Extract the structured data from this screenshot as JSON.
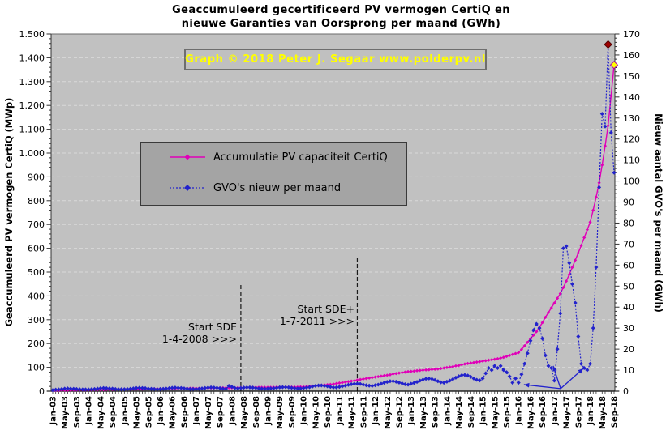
{
  "header": {
    "title_line1": "Geaccumuleerd  gecertificeerd  PV  vermogen  CertiQ  en",
    "title_line2": "nieuwe  Garanties  van  Oorsprong  per  maand  (GWh)"
  },
  "watermark": {
    "text": "Graph  ©  2018  Peter J. Segaar   www.polderpv.nl",
    "color": "#ffff00"
  },
  "chart_data": {
    "type": "line",
    "title": "Geaccumuleerd gecertificeerd PV vermogen CertiQ en nieuwe Garanties van Oorsprong per maand (GWh)",
    "x_label_every": 4,
    "x_tick_labels": [
      "Jan-03",
      "May-03",
      "Sep-03",
      "Jan-04",
      "May-04",
      "Sep-04",
      "Jan-05",
      "May-05",
      "Sep-05",
      "Jan-06",
      "May-06",
      "Sep-06",
      "Jan-07",
      "May-07",
      "Sep-07",
      "Jan-08",
      "May-08",
      "Sep-08",
      "Jan-09",
      "May-09",
      "Sep-09",
      "Jan-10",
      "May-10",
      "Sep-10",
      "Jan-11",
      "May-11",
      "Sep-11",
      "Jan-12",
      "May-12",
      "Sep-12",
      "Jan-13",
      "May-13",
      "Sep-13",
      "Jan-14",
      "May-14",
      "Sep-14",
      "Jan-15",
      "May-15",
      "Sep-15",
      "Jan-16",
      "May-16",
      "Sep-16",
      "Jan-17",
      "May-17",
      "Sep-17",
      "Jan-18",
      "May-18",
      "Sep-18"
    ],
    "y_left": {
      "label": "Geaccumuleerd PV vermogen CertiQ (MWp)",
      "min": 0,
      "max": 1500,
      "step": 100,
      "tick_labels": [
        "0",
        "100",
        "200",
        "300",
        "400",
        "500",
        "600",
        "700",
        "800",
        "900",
        "1.000",
        "1.100",
        "1.200",
        "1.300",
        "1.400",
        "1.500"
      ]
    },
    "y_right": {
      "label": "Nieuw aantal GVO's per maand (GWh)",
      "min": 0,
      "max": 170,
      "step": 10,
      "tick_labels": [
        "0",
        "10",
        "20",
        "30",
        "40",
        "50",
        "60",
        "70",
        "80",
        "90",
        "100",
        "110",
        "120",
        "130",
        "140",
        "150",
        "160",
        "170"
      ]
    },
    "grid": {
      "horizontal": true,
      "color": "#d9d9d9",
      "dashed": true
    },
    "plot_bg": "#c1c1c1",
    "series": [
      {
        "name": "Accumulatie PV capaciteit CertiQ",
        "axis": "left",
        "color": "#e000b8",
        "line": "solid",
        "values": [
          3,
          3,
          3,
          4,
          4,
          4,
          4,
          5,
          5,
          5,
          5,
          5,
          5,
          5,
          6,
          6,
          6,
          6,
          7,
          7,
          7,
          7,
          8,
          8,
          8,
          8,
          8,
          9,
          9,
          9,
          9,
          10,
          10,
          10,
          10,
          10,
          10,
          10,
          11,
          11,
          11,
          11,
          12,
          12,
          12,
          12,
          12,
          12,
          12,
          12,
          12,
          13,
          13,
          13,
          13,
          13,
          14,
          14,
          14,
          14,
          14,
          14,
          15,
          15,
          15,
          15,
          16,
          16,
          16,
          16,
          16,
          16,
          16,
          16,
          16,
          17,
          17,
          17,
          17,
          17,
          17,
          17,
          17,
          18,
          18,
          19,
          20,
          21,
          22,
          23,
          25,
          26,
          27,
          28,
          30,
          32,
          34,
          36,
          38,
          40,
          42,
          44,
          47,
          49,
          51,
          53,
          55,
          57,
          59,
          61,
          63,
          65,
          67,
          69,
          72,
          74,
          76,
          78,
          80,
          82,
          83,
          84,
          86,
          87,
          88,
          89,
          90,
          91,
          92,
          93,
          95,
          97,
          99,
          101,
          103,
          106,
          108,
          111,
          114,
          116,
          118,
          120,
          122,
          124,
          126,
          128,
          130,
          132,
          134,
          136,
          139,
          142,
          146,
          150,
          154,
          158,
          162,
          175,
          190,
          205,
          220,
          235,
          250,
          268,
          288,
          310,
          330,
          350,
          370,
          390,
          410,
          435,
          462,
          490,
          520,
          550,
          580,
          612,
          645,
          678,
          710,
          760,
          815,
          875,
          950,
          1030,
          1115,
          1240,
          1370
        ]
      },
      {
        "name": "GVO's nieuw per maand",
        "axis": "right",
        "color": "#2222cc",
        "line": "dotted",
        "values": [
          0.5,
          0.7,
          0.8,
          1,
          1.2,
          1.3,
          1.2,
          1.1,
          1,
          0.9,
          0.8,
          0.8,
          0.8,
          0.9,
          1,
          1.2,
          1.4,
          1.5,
          1.4,
          1.3,
          1.2,
          1,
          0.9,
          0.9,
          0.9,
          1,
          1.1,
          1.3,
          1.5,
          1.6,
          1.5,
          1.4,
          1.2,
          1.1,
          1,
          0.9,
          1,
          1.1,
          1.2,
          1.4,
          1.6,
          1.7,
          1.6,
          1.5,
          1.3,
          1.2,
          1,
          1,
          1,
          1.1,
          1.3,
          1.5,
          1.7,
          1.8,
          1.7,
          1.6,
          1.4,
          1.2,
          1.1,
          2.5,
          2,
          1.5,
          1.3,
          1.5,
          1.7,
          1.8,
          1.8,
          1.7,
          1.5,
          1.3,
          1.2,
          1.2,
          1.2,
          1.3,
          1.4,
          1.6,
          1.8,
          1.9,
          1.9,
          1.8,
          1.6,
          1.4,
          1.3,
          1.3,
          1.5,
          1.7,
          1.9,
          2.2,
          2.5,
          2.7,
          2.7,
          2.5,
          2.3,
          2,
          1.8,
          1.8,
          2,
          2.3,
          2.6,
          3,
          3.3,
          3.5,
          3.5,
          3.4,
          3.1,
          2.8,
          2.6,
          2.5,
          2.8,
          3.1,
          3.5,
          4,
          4.4,
          4.7,
          4.7,
          4.5,
          4.1,
          3.7,
          3.3,
          3.1,
          3.5,
          3.9,
          4.4,
          5,
          5.5,
          5.9,
          6,
          5.8,
          5.3,
          4.7,
          4.2,
          4,
          4.5,
          5,
          5.7,
          6.4,
          7.1,
          7.6,
          7.7,
          7.4,
          6.8,
          6,
          5.4,
          5.1,
          6,
          8.5,
          11,
          10,
          12,
          11,
          12,
          10,
          9,
          7,
          4,
          6,
          4,
          8,
          13,
          18,
          24,
          29,
          32,
          30,
          25,
          17,
          12,
          11,
          5,
          20,
          37,
          68,
          69,
          61,
          51,
          42,
          26,
          13,
          11,
          10,
          13,
          30,
          59,
          97,
          132,
          126,
          165,
          123,
          104
        ]
      }
    ],
    "highlight_points": [
      {
        "series": 1,
        "index": 186,
        "month": "Jul-18",
        "value": 165,
        "fill": "#a00000",
        "stroke": "#550000"
      },
      {
        "series": 0,
        "index": 188,
        "month": "Sep-18",
        "value": 1370,
        "fill": "#ffff00",
        "stroke": "#b000b0"
      }
    ],
    "vlines": [
      {
        "label_line1": "Start SDE",
        "label_line2": "1-4-2008  >>>",
        "month": "Apr-08",
        "index": 63
      },
      {
        "label_line1": "Start SDE+",
        "label_line2": "1-7-2011  >>>",
        "month": "Jul-11",
        "index": 102
      }
    ],
    "arrows": [
      {
        "from": [
          170.1,
          1.2
        ],
        "to": [
          157.8,
          3.1
        ]
      },
      {
        "from": [
          170.1,
          1.2
        ],
        "to": [
          167.6,
          12.0
        ]
      },
      {
        "from": [
          170.1,
          1.2
        ],
        "to": [
          177.7,
          10.8
        ]
      }
    ],
    "legend_position": "inside-top-left"
  }
}
